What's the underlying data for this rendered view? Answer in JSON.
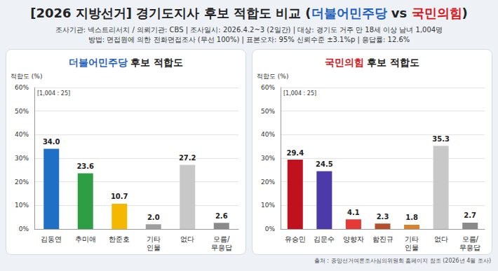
{
  "title": [
    {
      "text": "[2026 지방선거] 경기도지사 후보 적합도 비교 ("
    },
    {
      "text": "더불어민주당",
      "color": "#1f5fbf"
    },
    {
      "text": " vs "
    },
    {
      "text": "국민의힘",
      "color": "#d7141a"
    },
    {
      "text": ")"
    }
  ],
  "info": [
    "조사기관: 넥스트리서치 / 의뢰기관: CBS | 조사일시: 2026.4.2~3 (2일간) | 대상: 경기도 거주 만 18세 이상 남녀 1,004명",
    "방법: 면접원에 의한 전화면접조사 (무선 100%) | 표본오차: 95% 신뢰수준 ±3.1%p | 응답률: 12.6%"
  ],
  "source": "출처 : 중앙선거여론조사심의위원회 홈페이지 참조 (2026년 4월 조사)",
  "chart_data": [
    {
      "type": "bar",
      "title": "더불어민주당 후보 적합도",
      "ylabel": "적합도 (%)",
      "note": "[1,004 : 25]",
      "categories": [
        "김동연",
        "추미애",
        "한준호",
        "기타 인물",
        "없다",
        "모름/무응답"
      ],
      "values": [
        34.0,
        23.6,
        10.7,
        2.0,
        27.2,
        2.6
      ],
      "value_labels": [
        "34.0",
        "23.6",
        "10.7",
        "2.0",
        "27.2",
        "2.6"
      ],
      "colors": [
        "#1f6fc5",
        "#2e9e44",
        "#f5b800",
        "#9e9e9e",
        "#c8c8c8",
        "#8a8a8a"
      ],
      "ylim": [
        0,
        60
      ],
      "yticks": [
        {
          "value": 0,
          "label": "0%"
        },
        {
          "value": 10,
          "label": "10%"
        },
        {
          "value": 20,
          "label": "20%"
        },
        {
          "value": 30,
          "label": "30%"
        },
        {
          "value": 40,
          "label": "40%"
        },
        {
          "value": 50,
          "label": "50%"
        },
        {
          "value": 60,
          "label": "60%"
        }
      ],
      "grid": true,
      "data_labels": true
    },
    {
      "type": "bar",
      "title": "국민의힘 후보 적합도",
      "ylabel": "적합도 (%)",
      "note": "[1,004 : 25]",
      "categories": [
        "유승민",
        "김문수",
        "양향자",
        "함진규",
        "기타 인물",
        "없다",
        "모름/무응답"
      ],
      "values": [
        29.4,
        24.5,
        4.1,
        2.3,
        1.8,
        35.3,
        2.7
      ],
      "value_labels": [
        "29.4",
        "24.5",
        "4.1",
        "2.3",
        "1.8",
        "35.3",
        "2.7"
      ],
      "colors": [
        "#c0111f",
        "#4b3aa8",
        "#e53935",
        "#b5502a",
        "#d9822b",
        "#c8c8c8",
        "#8a8a8a"
      ],
      "ylim": [
        0,
        60
      ],
      "yticks": [
        {
          "value": 0,
          "label": "0%"
        },
        {
          "value": 10,
          "label": "10%"
        },
        {
          "value": 20,
          "label": "20%"
        },
        {
          "value": 30,
          "label": "30%"
        },
        {
          "value": 40,
          "label": "40%"
        },
        {
          "value": 50,
          "label": "50%"
        },
        {
          "value": 60,
          "label": "60%"
        }
      ],
      "grid": true,
      "data_labels": true
    }
  ]
}
